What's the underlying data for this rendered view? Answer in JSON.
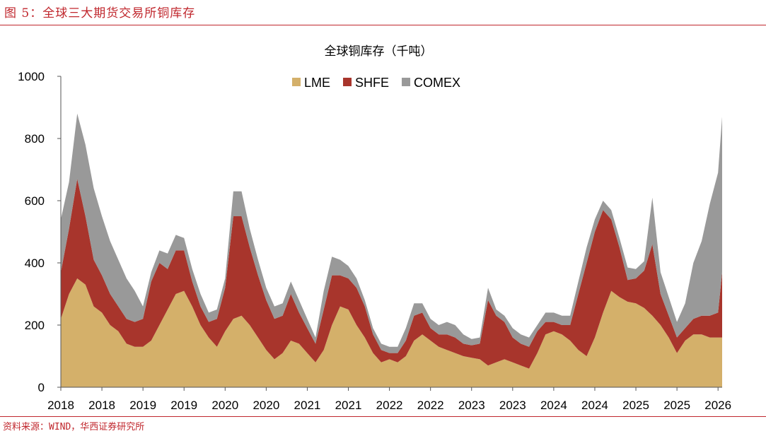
{
  "figure": {
    "caption": "图 5：全球三大期货交易所铜库存",
    "source": "资料来源：WIND，华西证券研究所"
  },
  "chart_data": {
    "type": "area",
    "stacked": true,
    "title": "全球铜库存（千吨）",
    "xlabel": "",
    "ylabel": "",
    "ylim": [
      0,
      1000
    ],
    "yticks": [
      0,
      200,
      400,
      600,
      800,
      1000
    ],
    "xtick_labels": [
      "2018",
      "2018",
      "2019",
      "2019",
      "2020",
      "2020",
      "2021",
      "2021",
      "2022",
      "2022",
      "2023",
      "2023",
      "2024",
      "2024",
      "2025",
      "2025",
      "2026"
    ],
    "legend_position": "top-center",
    "grid": false,
    "x": [
      2018.0,
      2018.1,
      2018.2,
      2018.3,
      2018.4,
      2018.5,
      2018.6,
      2018.7,
      2018.8,
      2018.9,
      2019.0,
      2019.1,
      2019.2,
      2019.3,
      2019.4,
      2019.5,
      2019.6,
      2019.7,
      2019.8,
      2019.9,
      2020.0,
      2020.1,
      2020.2,
      2020.3,
      2020.4,
      2020.5,
      2020.6,
      2020.7,
      2020.8,
      2020.9,
      2021.0,
      2021.1,
      2021.2,
      2021.3,
      2021.4,
      2021.5,
      2021.6,
      2021.7,
      2021.8,
      2021.9,
      2022.0,
      2022.1,
      2022.2,
      2022.3,
      2022.4,
      2022.5,
      2022.6,
      2022.7,
      2022.8,
      2022.9,
      2023.0,
      2023.1,
      2023.2,
      2023.3,
      2023.4,
      2023.5,
      2023.6,
      2023.7,
      2023.8,
      2023.9,
      2024.0,
      2024.1,
      2024.2,
      2024.3,
      2024.4,
      2024.5,
      2024.6,
      2024.7,
      2024.8,
      2024.9,
      2025.0,
      2025.1,
      2025.2,
      2025.3,
      2025.4,
      2025.5,
      2025.6,
      2025.7,
      2025.8,
      2025.9,
      2026.0,
      2026.05
    ],
    "series": [
      {
        "name": "LME",
        "color": "#d4b06a",
        "values": [
          220,
          300,
          350,
          330,
          260,
          240,
          200,
          180,
          140,
          130,
          130,
          150,
          200,
          250,
          300,
          310,
          260,
          200,
          160,
          130,
          180,
          220,
          230,
          200,
          160,
          120,
          90,
          110,
          150,
          140,
          110,
          80,
          120,
          200,
          260,
          250,
          200,
          160,
          110,
          80,
          90,
          80,
          100,
          150,
          170,
          150,
          130,
          120,
          110,
          100,
          95,
          90,
          70,
          80,
          90,
          80,
          70,
          60,
          110,
          170,
          180,
          170,
          150,
          120,
          100,
          160,
          240,
          310,
          290,
          275,
          270,
          255,
          230,
          200,
          160,
          110,
          150,
          170,
          170,
          160,
          160,
          160
        ]
      },
      {
        "name": "SHFE",
        "color": "#a8352c",
        "values": [
          150,
          210,
          320,
          220,
          150,
          120,
          100,
          80,
          80,
          80,
          90,
          190,
          200,
          130,
          140,
          130,
          80,
          60,
          50,
          90,
          140,
          330,
          320,
          250,
          200,
          160,
          130,
          120,
          150,
          100,
          80,
          60,
          130,
          160,
          100,
          100,
          120,
          100,
          60,
          40,
          20,
          30,
          50,
          80,
          70,
          40,
          40,
          50,
          50,
          40,
          40,
          50,
          210,
          150,
          120,
          80,
          70,
          70,
          70,
          40,
          30,
          30,
          50,
          180,
          300,
          340,
          330,
          230,
          160,
          70,
          80,
          120,
          230,
          100,
          70,
          50,
          40,
          50,
          60,
          70,
          80,
          210
        ]
      },
      {
        "name": "COMEX",
        "color": "#999999",
        "values": [
          170,
          150,
          210,
          230,
          230,
          190,
          170,
          150,
          130,
          100,
          40,
          30,
          40,
          50,
          50,
          40,
          40,
          40,
          30,
          30,
          30,
          80,
          80,
          60,
          50,
          40,
          40,
          40,
          40,
          40,
          30,
          20,
          60,
          60,
          50,
          40,
          30,
          20,
          20,
          20,
          20,
          20,
          40,
          40,
          30,
          30,
          30,
          40,
          40,
          30,
          20,
          20,
          40,
          20,
          20,
          30,
          30,
          30,
          20,
          30,
          30,
          30,
          30,
          40,
          50,
          40,
          30,
          30,
          30,
          40,
          30,
          30,
          150,
          70,
          60,
          50,
          80,
          180,
          240,
          360,
          450,
          500
        ]
      }
    ]
  }
}
